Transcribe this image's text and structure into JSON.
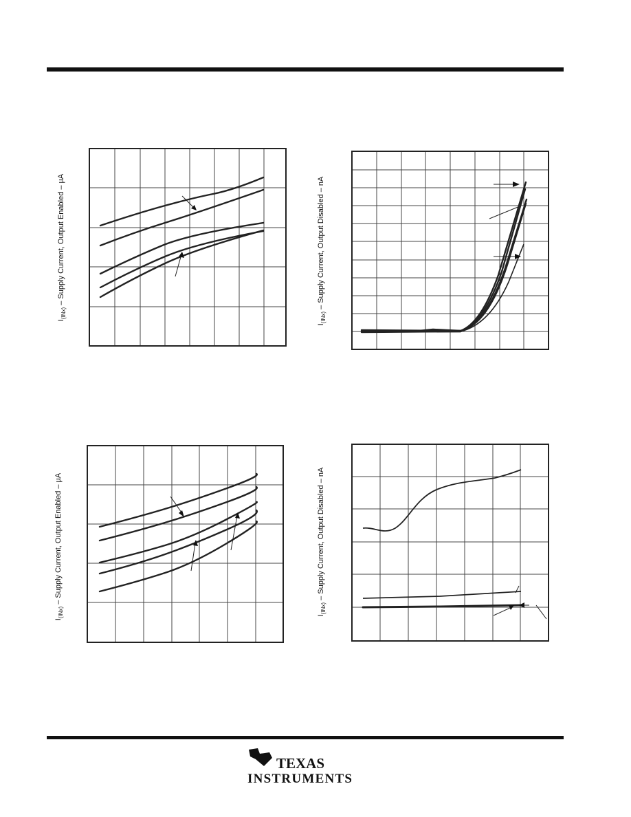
{
  "charts": [
    {
      "ylabel": {
        "symbol": "I",
        "subscript": "(INx)",
        "text": " – Supply Current, Output Enabled – µA"
      }
    },
    {
      "ylabel": {
        "symbol": "I",
        "subscript": "(INx)",
        "text": " – Supply Current, Output Disabled – nA"
      }
    },
    {
      "ylabel": {
        "symbol": "I",
        "subscript": "(INx)",
        "text": " – Supply Current, Output Enabled – µA"
      }
    },
    {
      "ylabel": {
        "symbol": "I",
        "subscript": "(INx)",
        "text": " – Supply Current, Output Disabled – nA"
      }
    }
  ],
  "footer": {
    "logo_line1": "TEXAS",
    "logo_line2": "INSTRUMENTS"
  }
}
